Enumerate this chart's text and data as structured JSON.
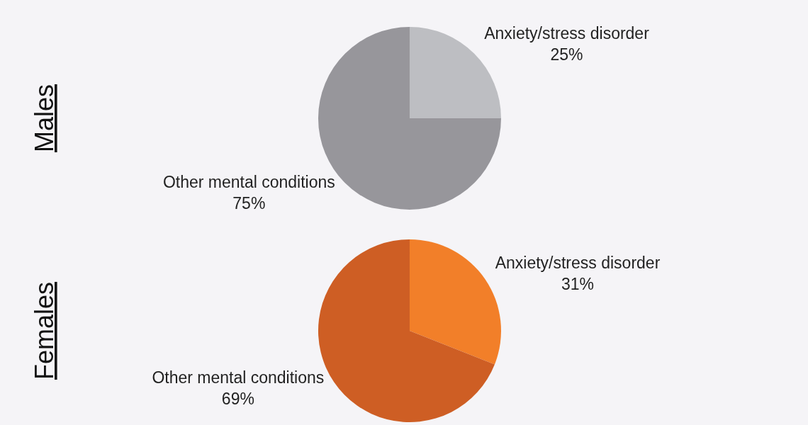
{
  "chart_data": [
    {
      "type": "pie",
      "title": "Males",
      "categories": [
        "Anxiety/stress disorder",
        "Other mental conditions"
      ],
      "values": [
        25,
        75
      ],
      "colors": [
        "#bdbec2",
        "#97969b"
      ],
      "value_labels": [
        "25%",
        "75%"
      ]
    },
    {
      "type": "pie",
      "title": "Females",
      "categories": [
        "Anxiety/stress disorder",
        "Other mental conditions"
      ],
      "values": [
        31,
        69
      ],
      "colors": [
        "#f27f29",
        "#ce5e24"
      ],
      "value_labels": [
        "31%",
        "69%"
      ]
    }
  ]
}
